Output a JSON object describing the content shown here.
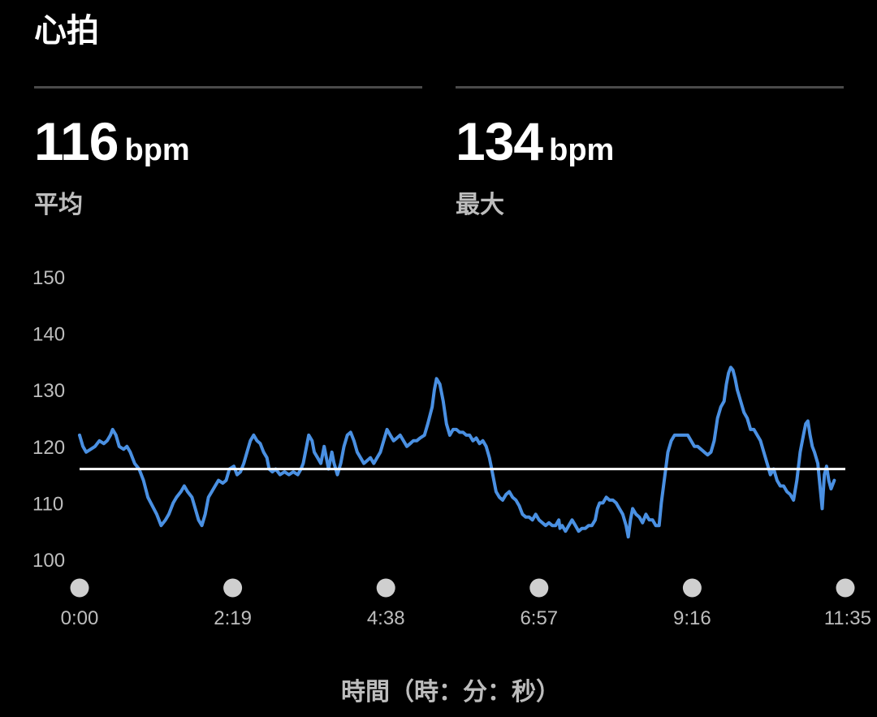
{
  "header": {
    "title": "心拍"
  },
  "stats": {
    "average": {
      "value": "116",
      "unit": "bpm",
      "label": "平均"
    },
    "maximum": {
      "value": "134",
      "unit": "bpm",
      "label": "最大"
    }
  },
  "colors": {
    "background": "#000000",
    "line": "#4a90e2",
    "average_line": "#ffffff",
    "muted_text": "#bdbdbd",
    "divider": "#4a4a4a",
    "marker": "#cfcfcf"
  },
  "chart_data": {
    "type": "line",
    "xlabel": "時間（時：分：秒）",
    "ylabel": "",
    "x_unit": "seconds",
    "ylim": [
      100,
      150
    ],
    "y_ticks": [
      150,
      140,
      130,
      120,
      110,
      100
    ],
    "x_tick_labels": [
      "0:00",
      "2:19",
      "4:38",
      "6:57",
      "9:16",
      "11:35"
    ],
    "xlim": [
      0,
      695
    ],
    "reference_line": {
      "value": 116
    },
    "series": [
      {
        "points": [
          [
            0,
            122
          ],
          [
            3,
            120
          ],
          [
            6,
            119
          ],
          [
            10,
            119.5
          ],
          [
            14,
            120
          ],
          [
            18,
            121
          ],
          [
            22,
            120.5
          ],
          [
            25,
            121
          ],
          [
            28,
            122
          ],
          [
            30,
            123
          ],
          [
            33,
            122
          ],
          [
            36,
            120
          ],
          [
            40,
            119.5
          ],
          [
            43,
            120
          ],
          [
            46,
            119
          ],
          [
            50,
            117
          ],
          [
            54,
            116
          ],
          [
            58,
            114
          ],
          [
            62,
            111
          ],
          [
            66,
            109.5
          ],
          [
            70,
            108
          ],
          [
            74,
            106
          ],
          [
            78,
            107
          ],
          [
            81,
            108
          ],
          [
            85,
            110
          ],
          [
            88,
            111
          ],
          [
            92,
            112
          ],
          [
            95,
            113
          ],
          [
            98,
            112
          ],
          [
            102,
            111
          ],
          [
            105,
            109
          ],
          [
            108,
            107
          ],
          [
            111,
            106
          ],
          [
            114,
            108
          ],
          [
            117,
            111
          ],
          [
            120,
            112
          ],
          [
            123,
            113
          ],
          [
            126,
            114
          ],
          [
            130,
            113.5
          ],
          [
            133,
            114
          ],
          [
            136,
            116
          ],
          [
            140,
            116.5
          ],
          [
            143,
            115
          ],
          [
            146,
            115.5
          ],
          [
            149,
            117
          ],
          [
            152,
            119
          ],
          [
            155,
            121
          ],
          [
            158,
            122
          ],
          [
            161,
            121
          ],
          [
            164,
            120.5
          ],
          [
            167,
            119
          ],
          [
            170,
            118
          ],
          [
            172,
            116
          ],
          [
            175,
            115.5
          ],
          [
            178,
            116
          ],
          [
            182,
            115
          ],
          [
            186,
            115.5
          ],
          [
            190,
            115
          ],
          [
            194,
            115.5
          ],
          [
            198,
            115
          ],
          [
            201,
            116
          ],
          [
            203,
            117
          ],
          [
            206,
            120
          ],
          [
            208,
            122
          ],
          [
            211,
            121
          ],
          [
            213,
            119
          ],
          [
            216,
            118
          ],
          [
            219,
            117
          ],
          [
            222,
            120
          ],
          [
            224,
            118
          ],
          [
            226,
            116
          ],
          [
            229,
            119
          ],
          [
            231,
            117
          ],
          [
            234,
            115
          ],
          [
            237,
            117
          ],
          [
            240,
            120
          ],
          [
            243,
            122
          ],
          [
            246,
            122.5
          ],
          [
            249,
            121
          ],
          [
            252,
            119
          ],
          [
            255,
            118
          ],
          [
            258,
            117
          ],
          [
            261,
            117.5
          ],
          [
            264,
            118
          ],
          [
            267,
            117
          ],
          [
            270,
            118
          ],
          [
            273,
            119
          ],
          [
            276,
            121
          ],
          [
            279,
            123
          ],
          [
            282,
            122
          ],
          [
            285,
            121
          ],
          [
            288,
            121.5
          ],
          [
            291,
            122
          ],
          [
            294,
            121
          ],
          [
            297,
            120
          ],
          [
            300,
            120.5
          ],
          [
            303,
            121
          ],
          [
            306,
            121
          ],
          [
            309,
            121.5
          ],
          [
            313,
            122
          ],
          [
            316,
            124
          ],
          [
            320,
            127
          ],
          [
            322,
            130
          ],
          [
            324,
            132
          ],
          [
            327,
            131
          ],
          [
            330,
            128
          ],
          [
            333,
            124
          ],
          [
            336,
            122
          ],
          [
            339,
            123
          ],
          [
            342,
            123
          ],
          [
            345,
            122.5
          ],
          [
            348,
            122.5
          ],
          [
            351,
            122
          ],
          [
            354,
            122
          ],
          [
            357,
            121
          ],
          [
            360,
            121.5
          ],
          [
            363,
            120.5
          ],
          [
            366,
            121
          ],
          [
            369,
            120
          ],
          [
            372,
            118
          ],
          [
            374,
            116
          ],
          [
            376,
            114
          ],
          [
            378,
            112
          ],
          [
            381,
            111
          ],
          [
            384,
            110.5
          ],
          [
            387,
            111.5
          ],
          [
            390,
            112
          ],
          [
            393,
            111
          ],
          [
            396,
            110.5
          ],
          [
            399,
            109.5
          ],
          [
            402,
            108
          ],
          [
            405,
            107.5
          ],
          [
            408,
            107.5
          ],
          [
            411,
            107
          ],
          [
            414,
            108
          ],
          [
            417,
            107
          ],
          [
            420,
            106.5
          ],
          [
            423,
            106
          ],
          [
            426,
            106.5
          ],
          [
            429,
            106
          ],
          [
            432,
            106
          ],
          [
            435,
            107
          ],
          [
            436,
            105.5
          ],
          [
            438,
            106
          ],
          [
            441,
            105
          ],
          [
            444,
            106
          ],
          [
            447,
            107
          ],
          [
            450,
            106
          ],
          [
            453,
            105
          ],
          [
            456,
            105.5
          ],
          [
            459,
            105.5
          ],
          [
            462,
            106
          ],
          [
            465,
            106
          ],
          [
            468,
            107
          ],
          [
            470,
            109
          ],
          [
            472,
            110
          ],
          [
            475,
            110
          ],
          [
            478,
            111
          ],
          [
            481,
            110.5
          ],
          [
            484,
            110.5
          ],
          [
            487,
            110
          ],
          [
            490,
            109
          ],
          [
            493,
            108
          ],
          [
            496,
            106
          ],
          [
            498,
            104
          ],
          [
            500,
            107
          ],
          [
            502,
            109
          ],
          [
            505,
            108
          ],
          [
            508,
            107.5
          ],
          [
            511,
            106.5
          ],
          [
            514,
            108
          ],
          [
            517,
            107
          ],
          [
            520,
            107
          ],
          [
            523,
            106
          ],
          [
            526,
            106
          ],
          [
            528,
            110
          ],
          [
            530,
            113
          ],
          [
            532,
            116
          ],
          [
            534,
            119
          ],
          [
            537,
            121
          ],
          [
            540,
            122
          ],
          [
            543,
            122
          ],
          [
            546,
            122
          ],
          [
            549,
            122
          ],
          [
            552,
            122
          ],
          [
            555,
            121
          ],
          [
            558,
            120
          ],
          [
            561,
            120
          ],
          [
            564,
            119.5
          ],
          [
            567,
            119
          ],
          [
            570,
            118.5
          ],
          [
            573,
            119
          ],
          [
            576,
            121
          ],
          [
            579,
            125
          ],
          [
            582,
            127
          ],
          [
            585,
            128
          ],
          [
            587,
            131
          ],
          [
            589,
            133
          ],
          [
            591,
            134
          ],
          [
            593,
            133.5
          ],
          [
            595,
            132
          ],
          [
            597,
            130
          ],
          [
            600,
            128
          ],
          [
            603,
            126
          ],
          [
            606,
            125
          ],
          [
            609,
            123
          ],
          [
            612,
            123
          ],
          [
            615,
            122
          ],
          [
            618,
            121
          ],
          [
            621,
            119
          ],
          [
            624,
            117
          ],
          [
            627,
            115
          ],
          [
            630,
            116
          ],
          [
            633,
            114
          ],
          [
            636,
            113
          ],
          [
            639,
            113
          ],
          [
            642,
            112
          ],
          [
            645,
            111.5
          ],
          [
            648,
            110.5
          ],
          [
            651,
            114
          ],
          [
            654,
            119
          ],
          [
            657,
            122
          ],
          [
            659,
            124
          ],
          [
            661,
            124.5
          ],
          [
            663,
            122
          ],
          [
            665,
            120
          ],
          [
            667,
            119
          ],
          [
            670,
            117
          ],
          [
            672,
            113
          ],
          [
            674,
            109
          ],
          [
            676,
            115
          ],
          [
            678,
            116.5
          ],
          [
            680,
            114
          ],
          [
            682,
            112.5
          ],
          [
            685,
            114
          ]
        ]
      }
    ]
  }
}
